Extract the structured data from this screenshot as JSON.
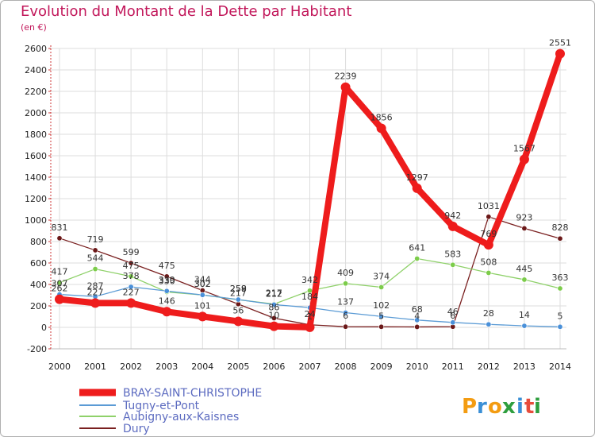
{
  "title": "Evolution du Montant de la Dette par Habitant",
  "subtitle": "(en €)",
  "logo": "Proxiti",
  "colors": {
    "title": "#c2185b",
    "grid": "#dddddd",
    "axis": "#cc3333"
  },
  "chart_data": {
    "type": "line",
    "categories": [
      "2000",
      "2001",
      "2002",
      "2003",
      "2004",
      "2005",
      "2006",
      "2007",
      "2008",
      "2009",
      "2010",
      "2011",
      "2012",
      "2013",
      "2014"
    ],
    "ylim": [
      -200,
      2600
    ],
    "yticks": [
      -200,
      0,
      200,
      400,
      600,
      800,
      1000,
      1200,
      1400,
      1600,
      1800,
      2000,
      2200,
      2400,
      2600
    ],
    "xlabel": "",
    "ylabel": "",
    "grid": true,
    "series": [
      {
        "name": "BRAY-SAINT-CHRISTOPHE",
        "color": "#ee1c1c",
        "marker": "#ee1c1c",
        "width": 8,
        "values": [
          262,
          227,
          227,
          146,
          101,
          56,
          10,
          1,
          2239,
          1856,
          1297,
          942,
          769,
          1567,
          2551
        ],
        "labels": [
          "262",
          "227",
          "227",
          "146",
          "101",
          "56",
          "10",
          "1",
          "2239",
          "1856",
          "1297",
          "942",
          "769",
          "1567",
          "2551"
        ]
      },
      {
        "name": "Tugny-et-Pont",
        "color": "#5b9bd5",
        "marker": "#4a90d9",
        "width": 1.3,
        "values": [
          307,
          287,
          378,
          339,
          302,
          259,
          212,
          184,
          137,
          102,
          68,
          46,
          28,
          14,
          5
        ],
        "labels": [
          "307",
          "287",
          "378",
          "339",
          "302",
          "259",
          "212",
          "184",
          "137",
          "102",
          "68",
          "46",
          "28",
          "14",
          "5"
        ]
      },
      {
        "name": "Aubigny-aux-Kaisnes",
        "color": "#8fd16a",
        "marker": "#7ccc4a",
        "width": 1.3,
        "values": [
          417,
          544,
          475,
          330,
          302,
          258,
          217,
          342,
          409,
          374,
          641,
          583,
          508,
          445,
          363
        ],
        "labels": [
          "417",
          "544",
          "475",
          "330",
          "302",
          "258",
          "217",
          "342",
          "409",
          "374",
          "641",
          "583",
          "508",
          "445",
          "363"
        ]
      },
      {
        "name": "Dury",
        "color": "#7a2020",
        "marker": "#6b1818",
        "width": 1.3,
        "values": [
          831,
          719,
          599,
          475,
          344,
          217,
          86,
          24,
          6,
          5,
          4,
          6,
          1031,
          923,
          828
        ],
        "labels": [
          "831",
          "719",
          "599",
          "475",
          "344",
          "217",
          "86",
          "24",
          "6",
          "5",
          "4",
          "6",
          "1031",
          "923",
          "828"
        ]
      }
    ]
  }
}
